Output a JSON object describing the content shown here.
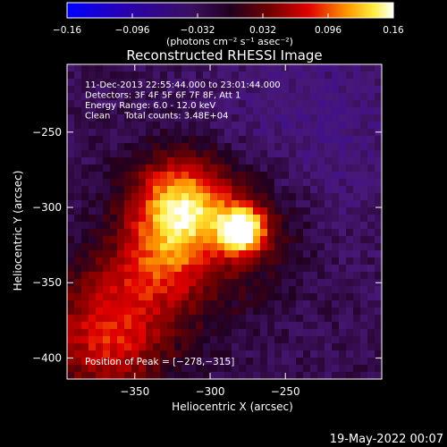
{
  "chart_data": {
    "type": "heatmap",
    "title": "Reconstructed RHESSI Image",
    "xlabel": "Heliocentric X (arcsec)",
    "ylabel": "Heliocentric Y (arcsec)",
    "xlim": [
      -395,
      -186
    ],
    "ylim": [
      -414,
      -205
    ],
    "x_ticks": [
      -350,
      -300,
      -250
    ],
    "x_tick_labels": [
      "−350",
      "−300",
      "−250"
    ],
    "y_ticks": [
      -250,
      -300,
      -350,
      -400
    ],
    "y_tick_labels": [
      "−250",
      "−300",
      "−350",
      "−400"
    ],
    "colorbar": {
      "range": [
        -0.16,
        0.16
      ],
      "ticks": [
        -0.16,
        -0.096,
        -0.032,
        0.032,
        0.096,
        0.16
      ],
      "tick_labels": [
        "−0.16",
        "−0.096",
        "−0.032",
        "0.032",
        "0.096",
        "0.16"
      ],
      "unit_label": "(photons cm⁻² s⁻¹ asec⁻²)",
      "colormap": "rhessi-blue-purple-red-yellow-white"
    },
    "annotations": [
      "11-Dec-2013 22:55:44.000 to 23:01:44.000",
      "Detectors: 3F 4F 5F 6F 7F 8F, Att 1",
      "Energy Range: 6.0 - 12.0 keV",
      "Clean     Total counts: 3.48E+04"
    ],
    "peak_label": "Position of Peak = [−278,−315]",
    "peak_position": [
      -278,
      -315
    ],
    "sources": [
      {
        "x": -278,
        "y": -315,
        "value": 0.16
      },
      {
        "x": -315,
        "y": -302,
        "value": 0.085
      },
      {
        "x": -325,
        "y": -292,
        "value": 0.07
      },
      {
        "x": -335,
        "y": -335,
        "value": 0.055
      },
      {
        "x": -360,
        "y": -395,
        "value": 0.045
      },
      {
        "x": -375,
        "y": -360,
        "value": 0.03
      }
    ],
    "grid": false
  },
  "footer": {
    "date_stamp": "19-May-2022 00:07"
  }
}
